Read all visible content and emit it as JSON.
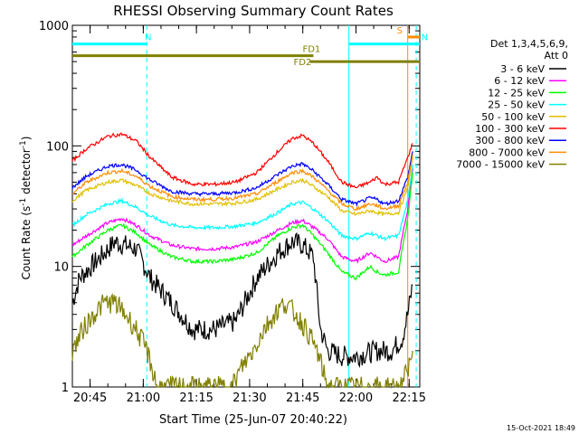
{
  "footer_date": "15-Oct-2021 18:49",
  "chart_data": {
    "type": "line",
    "title": "RHESSI Observing Summary Count Rates",
    "xlabel": "Start Time (25-Jun-07 20:40:22)",
    "ylabel_main": "Count Rate (s",
    "ylabel_sup": "-1",
    "ylabel_mid": " detector",
    "ylabel_end": ")",
    "y_scale": "log",
    "ylim": [
      1,
      1000
    ],
    "xlim": [
      "20:40",
      "22:18"
    ],
    "y_ticks": [
      {
        "value": 1,
        "label": "1"
      },
      {
        "value": 10,
        "label": "10"
      },
      {
        "value": 100,
        "label": "100"
      },
      {
        "value": 1000,
        "label": "1000"
      }
    ],
    "x_ticks": [
      {
        "value": 5,
        "label": "20:45"
      },
      {
        "value": 20,
        "label": "21:00"
      },
      {
        "value": 35,
        "label": "21:15"
      },
      {
        "value": 50,
        "label": "21:30"
      },
      {
        "value": 65,
        "label": "21:45"
      },
      {
        "value": 80,
        "label": "22:00"
      },
      {
        "value": 95,
        "label": "22:15"
      }
    ],
    "legend_header": [
      "Det 1,3,4,5,6,9,",
      "Att 0"
    ],
    "legend_position": "right",
    "series": [
      {
        "name": "3 - 6 keV",
        "color": "#000000",
        "x": [
          0,
          2,
          8,
          12,
          18,
          22,
          28,
          34,
          40,
          46,
          52,
          58,
          62,
          65,
          68,
          70,
          72,
          76,
          80,
          86,
          90,
          93,
          94.6,
          96
        ],
        "y": [
          5,
          8,
          12,
          16,
          14,
          8,
          5,
          3,
          3,
          3.5,
          8,
          13,
          16,
          15,
          12,
          3,
          2,
          1.8,
          1.8,
          2,
          2,
          2.5,
          4,
          7
        ]
      },
      {
        "name": "6 - 12 keV",
        "color": "#ff00ff",
        "x": [
          0,
          4,
          10,
          14,
          18,
          22,
          28,
          34,
          40,
          46,
          52,
          58,
          62,
          65,
          68,
          72,
          76,
          80,
          84,
          86,
          88,
          92,
          94.6,
          96
        ],
        "y": [
          15,
          18,
          23,
          25,
          22,
          18,
          15,
          14,
          14,
          14.5,
          16,
          20,
          23,
          24,
          21,
          17,
          12,
          11,
          13,
          12,
          11,
          12,
          30,
          65
        ]
      },
      {
        "name": "12 - 25 keV",
        "color": "#00ff00",
        "x": [
          0,
          4,
          10,
          14,
          18,
          22,
          28,
          34,
          40,
          46,
          52,
          58,
          62,
          65,
          68,
          72,
          76,
          80,
          84,
          86,
          88,
          92,
          94.6,
          96
        ],
        "y": [
          12,
          15,
          20,
          22,
          19,
          15,
          12,
          11,
          11,
          11.5,
          13,
          18,
          21,
          22,
          18,
          13,
          9,
          8,
          10,
          9,
          8.5,
          9,
          25,
          60
        ]
      },
      {
        "name": "25 - 50 keV",
        "color": "#00ffff",
        "x": [
          0,
          4,
          10,
          14,
          18,
          22,
          28,
          34,
          40,
          46,
          52,
          58,
          62,
          65,
          68,
          72,
          76,
          80,
          84,
          86,
          88,
          92,
          94.6,
          96
        ],
        "y": [
          22,
          27,
          33,
          35,
          31,
          26,
          22,
          21,
          21,
          21.5,
          23,
          28,
          33,
          34,
          30,
          24,
          18,
          17,
          19,
          18,
          17,
          18,
          35,
          70
        ]
      },
      {
        "name": "50 - 100 keV",
        "color": "#e0c000",
        "x": [
          0,
          4,
          10,
          14,
          18,
          22,
          28,
          34,
          40,
          46,
          52,
          58,
          62,
          65,
          68,
          72,
          76,
          80,
          84,
          86,
          88,
          92,
          94.6,
          96
        ],
        "y": [
          35,
          43,
          50,
          52,
          47,
          40,
          35,
          33,
          33,
          33.5,
          36,
          44,
          50,
          52,
          46,
          38,
          29,
          27,
          29,
          28,
          27,
          28,
          45,
          80
        ]
      },
      {
        "name": "100 - 300 keV",
        "color": "#ff0000",
        "x": [
          0,
          4,
          10,
          14,
          18,
          22,
          28,
          34,
          40,
          46,
          52,
          58,
          62,
          65,
          68,
          72,
          76,
          80,
          84,
          86,
          88,
          92,
          94.6,
          96
        ],
        "y": [
          75,
          95,
          120,
          125,
          110,
          80,
          55,
          48,
          48,
          50,
          60,
          90,
          115,
          122,
          105,
          75,
          50,
          45,
          50,
          55,
          48,
          50,
          80,
          105
        ]
      },
      {
        "name": "300 - 800 keV",
        "color": "#0000ff",
        "x": [
          0,
          4,
          10,
          14,
          18,
          22,
          28,
          34,
          40,
          46,
          52,
          58,
          62,
          65,
          68,
          72,
          76,
          80,
          84,
          86,
          88,
          92,
          94.6,
          96
        ],
        "y": [
          45,
          56,
          68,
          70,
          63,
          52,
          42,
          40,
          40,
          41,
          45,
          58,
          68,
          71,
          62,
          48,
          36,
          33,
          37,
          36,
          33,
          35,
          55,
          90
        ]
      },
      {
        "name": "800 - 7000 keV",
        "color": "#ff8c00",
        "x": [
          0,
          4,
          10,
          14,
          18,
          22,
          28,
          34,
          40,
          46,
          52,
          58,
          62,
          65,
          68,
          72,
          76,
          80,
          84,
          86,
          88,
          92,
          94.6,
          96
        ],
        "y": [
          40,
          50,
          60,
          62,
          56,
          46,
          38,
          36,
          36,
          37,
          40,
          51,
          60,
          62,
          55,
          43,
          33,
          30,
          33,
          32,
          30,
          32,
          50,
          85
        ]
      },
      {
        "name": "7000 - 15000 keV",
        "color": "#808000",
        "x": [
          0,
          3,
          6,
          9,
          12,
          15,
          18,
          21,
          24,
          27,
          30,
          33,
          36,
          39,
          42,
          45,
          48,
          51,
          54,
          57,
          60,
          63,
          66,
          69,
          72,
          75,
          78,
          81,
          84,
          87,
          90,
          93,
          96
        ],
        "y": [
          2,
          3,
          4,
          5,
          5,
          4,
          3,
          2,
          1,
          1,
          1,
          1,
          1,
          1,
          1,
          1,
          1.5,
          2,
          3,
          4,
          5,
          4,
          3,
          2,
          1,
          1,
          1,
          1,
          1,
          1,
          1,
          1,
          2
        ]
      }
    ],
    "mode_bars": [
      {
        "label": "N",
        "color": "#00ffff",
        "x_start": 0,
        "x_end": 21,
        "y_value": 700
      },
      {
        "label": "N",
        "color": "#00ffff",
        "x_start": 78,
        "x_end": 98,
        "y_value": 700
      },
      {
        "label": "S",
        "color": "#ff8c00",
        "x_start": 94.6,
        "x_end": 98,
        "y_value": 800
      },
      {
        "label": "FD1",
        "color": "#808000",
        "x_start": 0,
        "x_end": 68,
        "y_value": 560
      },
      {
        "label": "FD2",
        "color": "#808000",
        "x_start": 67,
        "x_end": 98,
        "y_value": 500
      }
    ],
    "vertical_markers": [
      {
        "x": 21,
        "color": "#00ffff",
        "style": "dashed"
      },
      {
        "x": 78,
        "color": "#00ffff",
        "style": "solid"
      },
      {
        "x": 94.6,
        "color": "#ff8c00",
        "style": "solid"
      },
      {
        "x": 97,
        "color": "#00ffff",
        "style": "dashed"
      }
    ]
  }
}
